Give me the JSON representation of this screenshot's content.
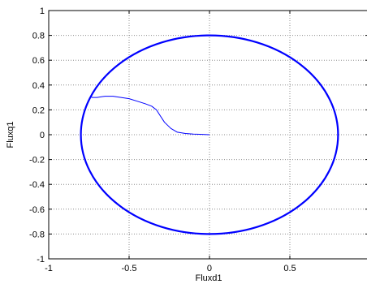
{
  "chart_data": {
    "type": "line",
    "title": "",
    "xlabel": "Fluxd1",
    "ylabel": "Fluxq1",
    "xlim": [
      -1,
      1
    ],
    "ylim": [
      -1,
      1
    ],
    "xticks": [
      -1,
      -0.5,
      0,
      0.5
    ],
    "xtick_labels": [
      "-1",
      "-0.5",
      "0",
      "0.5"
    ],
    "yticks": [
      1,
      0.8,
      0.6,
      0.4,
      0.2,
      0,
      -0.2,
      -0.4,
      -0.6,
      -0.8,
      -1
    ],
    "ytick_labels": [
      "1",
      "0.8",
      "0.6",
      "0.4",
      "0.2",
      "0",
      "-0.2",
      "-0.4",
      "-0.6",
      "-0.8",
      "-1"
    ],
    "grid": true,
    "line_color": "#0000ff",
    "circle": {
      "cx": 0,
      "cy": 0,
      "radius": 0.8
    },
    "series": [
      {
        "values": [
          [
            0.0,
            0.0
          ],
          [
            -0.03,
            0.001
          ],
          [
            -0.06,
            0.003
          ],
          [
            -0.1,
            0.005
          ],
          [
            -0.15,
            0.01
          ],
          [
            -0.2,
            0.02
          ],
          [
            -0.24,
            0.05
          ],
          [
            -0.28,
            0.1
          ],
          [
            -0.31,
            0.16
          ],
          [
            -0.33,
            0.2
          ],
          [
            -0.36,
            0.23
          ],
          [
            -0.4,
            0.25
          ],
          [
            -0.45,
            0.27
          ],
          [
            -0.5,
            0.29
          ],
          [
            -0.55,
            0.3
          ],
          [
            -0.6,
            0.31
          ],
          [
            -0.65,
            0.31
          ],
          [
            -0.7,
            0.3
          ],
          [
            -0.73,
            0.3
          ],
          [
            -0.74,
            0.31
          ]
        ]
      }
    ]
  }
}
